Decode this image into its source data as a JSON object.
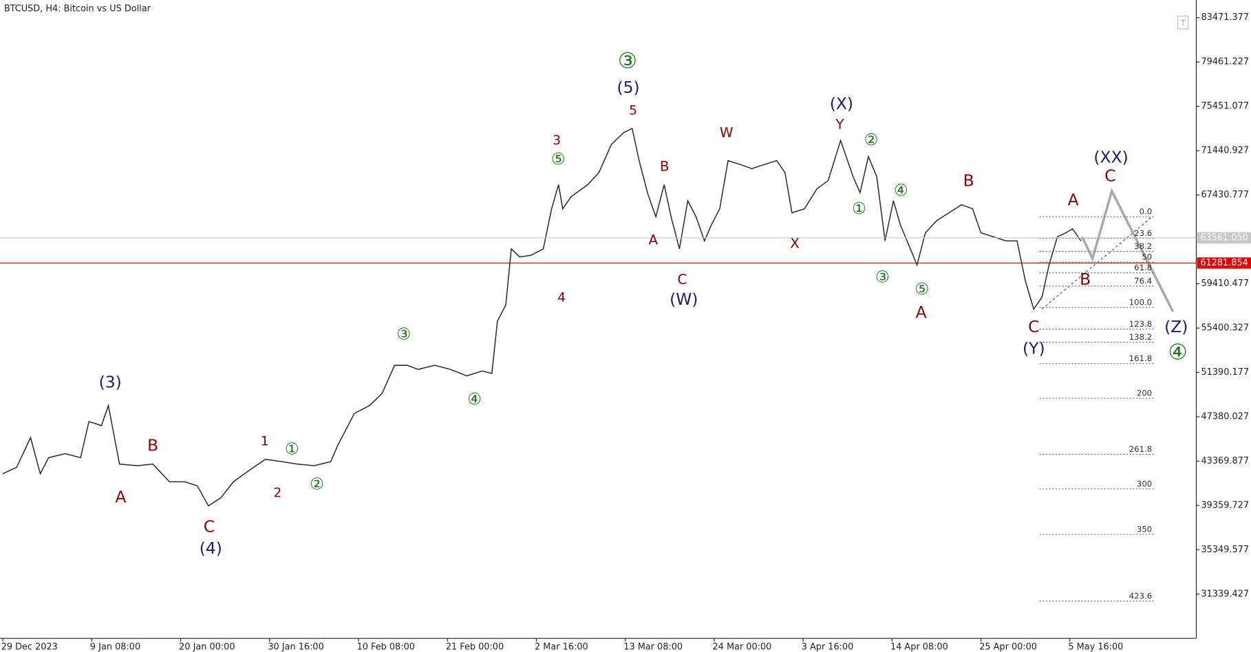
{
  "chart_data": {
    "type": "line",
    "title": "BTCUSD, H4:  Bitcoin vs US Dollar",
    "color": "#2b2b2b",
    "x": [
      0,
      10,
      20,
      27,
      33,
      45,
      56,
      62,
      71,
      76,
      84,
      97,
      108,
      120,
      131,
      140,
      148,
      157,
      166,
      178,
      189,
      201,
      212,
      224,
      236,
      241,
      253,
      264,
      273,
      282,
      291,
      299,
      311,
      322,
      334,
      345,
      352,
      356,
      362,
      366,
      372,
      380,
      389,
      395,
      400,
      403,
      409,
      421,
      429,
      438,
      447,
      453,
      458,
      464,
      470,
      476,
      481,
      487,
      493,
      499,
      505,
      510,
      516,
      522,
      531,
      539,
      548,
      557,
      563,
      568,
      577,
      586,
      594,
      603,
      612,
      617,
      623,
      629,
      635,
      641,
      646,
      652,
      658,
      664,
      672,
      681,
      690,
      698,
      704,
      713,
      722,
      730,
      736,
      742,
      748,
      753,
      759,
      765,
      770,
      776
    ],
    "values": [
      42230,
      42811,
      45497,
      42230,
      43682,
      44045,
      43682,
      46949,
      46586,
      48400,
      43101,
      42956,
      43101,
      41504,
      41504,
      41141,
      39326,
      40052,
      41504,
      42593,
      43537,
      43319,
      43101,
      42956,
      43319,
      44771,
      47675,
      48400,
      49490,
      52032,
      52032,
      51669,
      52032,
      51669,
      51087,
      51523,
      51305,
      56025,
      57477,
      62559,
      61833,
      61978,
      62559,
      66190,
      68368,
      66190,
      67279,
      68368,
      69457,
      71999,
      73088,
      73451,
      70547,
      67642,
      65464,
      68368,
      65464,
      62559,
      66916,
      65464,
      63285,
      64738,
      66190,
      70547,
      70184,
      69820,
      70184,
      70547,
      69457,
      65827,
      66190,
      68005,
      68731,
      72362,
      69094,
      67642,
      70910,
      69094,
      63285,
      66916,
      64738,
      62922,
      61107,
      64012,
      65101,
      65827,
      66553,
      66190,
      64012,
      63649,
      63285,
      63285,
      59655,
      57114,
      58203,
      61107,
      63649,
      64012,
      64375,
      63285
    ],
    "xlim": [
      -2,
      859
    ],
    "xticks": [
      {
        "value": 0,
        "label": "29 Dec 2023"
      },
      {
        "value": 64,
        "label": "9 Jan 08:00"
      },
      {
        "value": 128,
        "label": "20 Jan 00:00"
      },
      {
        "value": 192,
        "label": "30 Jan 16:00"
      },
      {
        "value": 256,
        "label": "10 Feb 08:00"
      },
      {
        "value": 320,
        "label": "21 Feb 00:00"
      },
      {
        "value": 384,
        "label": "2 Mar 16:00"
      },
      {
        "value": 448,
        "label": "13 Mar 08:00"
      },
      {
        "value": 512,
        "label": "24 Mar 00:00"
      },
      {
        "value": 576,
        "label": "3 Apr 16:00"
      },
      {
        "value": 640,
        "label": "14 Apr 08:00"
      },
      {
        "value": 704,
        "label": "25 Apr 00:00"
      },
      {
        "value": 768,
        "label": "5 May 16:00"
      }
    ],
    "ylim": [
      27344,
      85069
    ],
    "yticks": [
      83471.377,
      79461.227,
      75451.077,
      71440.927,
      67430.777,
      59410.477,
      55400.327,
      51390.177,
      47380.027,
      43369.877,
      39359.727,
      35349.577,
      31339.427
    ],
    "price_lines": [
      {
        "value": 63561.05,
        "label": "63561.050",
        "color": "#c8c8c8"
      },
      {
        "value": 61281.854,
        "label": "61281.854",
        "color": "#e00000"
      }
    ],
    "fibonacci": {
      "start": 65464,
      "end": 57260,
      "levels": [
        {
          "value": 0,
          "label": "0.0"
        },
        23.6,
        38.2,
        50,
        61.8,
        76.4,
        {
          "value": 100,
          "label": "100.0"
        },
        123.8,
        138.2,
        161.8,
        200,
        261.8,
        300,
        350,
        423.6
      ]
    },
    "annotations": [
      {
        "text": "(3)",
        "color": "#1c1c6b"
      },
      {
        "text": "(4)",
        "color": "#1c1c6b"
      },
      {
        "text": "(5)",
        "color": "#1c1c6b"
      },
      {
        "text": "(W)",
        "color": "#1c1c6b"
      },
      {
        "text": "(X)",
        "color": "#1c1c6b"
      },
      {
        "text": "(Y)",
        "color": "#1c1c6b"
      },
      {
        "text": "(XX)",
        "color": "#1c1c6b"
      },
      {
        "text": "(Z)",
        "color": "#1c1c6b"
      },
      {
        "text": "A",
        "color": "#8b0000"
      },
      {
        "text": "B",
        "color": "#8b0000"
      },
      {
        "text": "C",
        "color": "#8b0000"
      },
      {
        "text": "1",
        "color": "#8b0000"
      },
      {
        "text": "2",
        "color": "#8b0000"
      },
      {
        "text": "3",
        "color": "#8b0000"
      },
      {
        "text": "4",
        "color": "#8b0000"
      },
      {
        "text": "5",
        "color": "#8b0000"
      },
      {
        "text": "B",
        "color": "#8b0000"
      },
      {
        "text": "A",
        "color": "#8b0000"
      },
      {
        "text": "C",
        "color": "#8b0000"
      },
      {
        "text": "W",
        "color": "#8b0000"
      },
      {
        "text": "X",
        "color": "#8b0000"
      },
      {
        "text": "Y",
        "color": "#8b0000"
      },
      {
        "text": "B",
        "color": "#8b0000"
      },
      {
        "text": "A",
        "color": "#8b0000"
      },
      {
        "text": "C",
        "color": "#8b0000"
      },
      {
        "text": "A",
        "color": "#8b0000"
      },
      {
        "text": "B",
        "color": "#8b0000"
      },
      {
        "text": "C",
        "color": "#8b0000"
      },
      {
        "text": "①",
        "color": "#1a7a1a"
      },
      {
        "text": "②",
        "color": "#1a7a1a"
      },
      {
        "text": "③",
        "color": "#1a7a1a"
      },
      {
        "text": "④",
        "color": "#1a7a1a"
      },
      {
        "text": "⑤",
        "color": "#1a7a1a"
      },
      {
        "text": "③",
        "color": "#1a7a1a"
      },
      {
        "text": "②",
        "color": "#1a7a1a"
      },
      {
        "text": "①",
        "color": "#1a7a1a"
      },
      {
        "text": "④",
        "color": "#1a7a1a"
      },
      {
        "text": "③",
        "color": "#1a7a1a"
      },
      {
        "text": "⑤",
        "color": "#1a7a1a"
      },
      {
        "text": "④",
        "color": "#1a7a1a"
      }
    ]
  }
}
